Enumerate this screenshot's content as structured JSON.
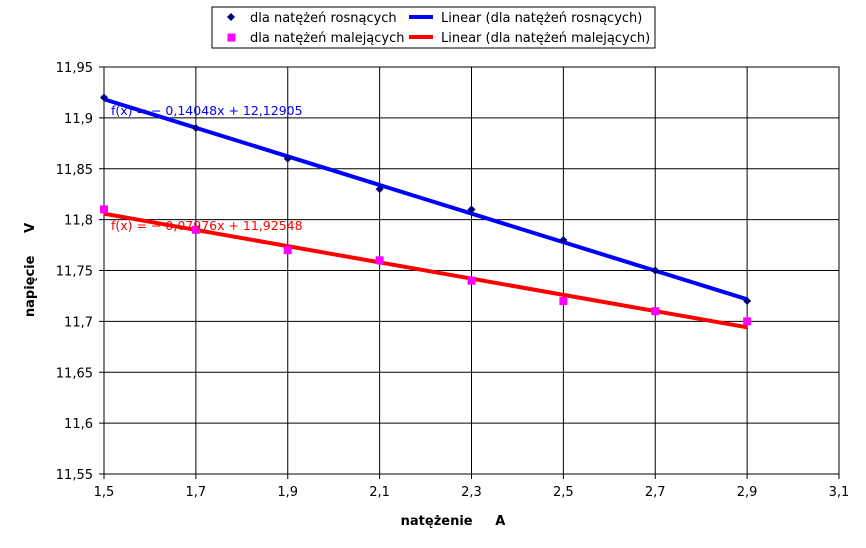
{
  "chart_data": {
    "type": "scatter",
    "xlabel": "natężenie     A",
    "ylabel": "napięcie     V",
    "xlim": [
      1.5,
      3.1
    ],
    "ylim": [
      11.55,
      11.95
    ],
    "x_ticks": [
      "1,5",
      "1,7",
      "1,9",
      "2,1",
      "2,3",
      "2,5",
      "2,7",
      "2,9",
      "3,1"
    ],
    "y_ticks": [
      "11,95",
      "11,9",
      "11,85",
      "11,8",
      "11,75",
      "11,7",
      "11,65",
      "11,6",
      "11,55"
    ],
    "grid": "horizontal and vertical",
    "legend_position": "top",
    "series": [
      {
        "name": "dla natężeń rosnących",
        "color": "#000080",
        "marker": "diamond",
        "x": [
          1.5,
          1.7,
          1.9,
          2.1,
          2.3,
          2.5,
          2.7,
          2.9
        ],
        "y": [
          11.92,
          11.89,
          11.86,
          11.83,
          11.81,
          11.78,
          11.75,
          11.72
        ]
      },
      {
        "name": "dla natężeń malejących",
        "color": "#ff00ff",
        "marker": "square",
        "x": [
          1.5,
          1.7,
          1.9,
          2.1,
          2.3,
          2.5,
          2.7,
          2.9
        ],
        "y": [
          11.81,
          11.79,
          11.77,
          11.76,
          11.74,
          11.72,
          11.71,
          11.7
        ]
      }
    ],
    "trendlines": [
      {
        "name": "Linear (dla natężeń rosnących)",
        "color": "#0000ff",
        "slope": -0.14048,
        "intercept": 12.12905,
        "x_range": [
          1.5,
          2.9
        ],
        "equation": "f(x) = − 0,14048x + 12,12905"
      },
      {
        "name": "Linear (dla natężeń malejących)",
        "color": "#ff0000",
        "slope": -0.07976,
        "intercept": 11.92548,
        "x_range": [
          1.5,
          2.9
        ],
        "equation": "f(x) = − 0,07976x + 11,92548"
      }
    ]
  }
}
